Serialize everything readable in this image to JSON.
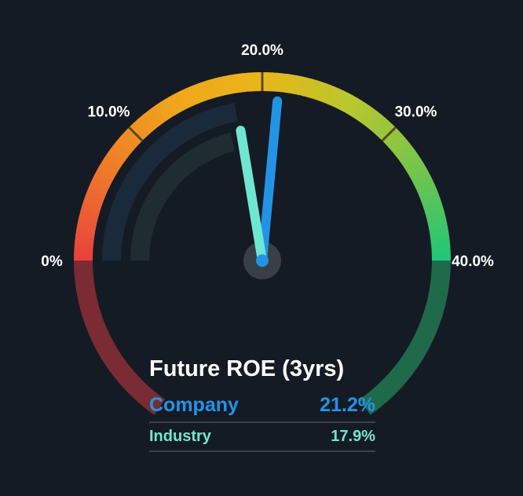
{
  "chart_data": {
    "type": "gauge",
    "title": "Future ROE (3yrs)",
    "range": [
      0,
      40
    ],
    "ticks": [
      {
        "value": 0,
        "label": "0%"
      },
      {
        "value": 10,
        "label": "10.0%"
      },
      {
        "value": 20,
        "label": "20.0%"
      },
      {
        "value": 30,
        "label": "30.0%"
      },
      {
        "value": 40,
        "label": "40.0%"
      }
    ],
    "series": [
      {
        "name": "Company",
        "value": 21.2,
        "label": "21.2%",
        "color": "#2394e5"
      },
      {
        "name": "Industry",
        "value": 17.9,
        "label": "17.9%",
        "color": "#6fe6d2"
      }
    ],
    "gradient_colors": [
      "#e8413f",
      "#ee7a2a",
      "#f1a51c",
      "#e9b61a",
      "#b8c72e",
      "#74c44d",
      "#1ec678"
    ]
  }
}
